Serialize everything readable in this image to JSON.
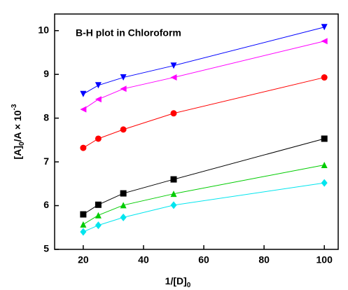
{
  "chart_data": {
    "type": "line",
    "annotation": "B-H plot in Chloroform",
    "x_label": [
      "1/[D]",
      "0"
    ],
    "y_label": [
      "[A]",
      "0",
      "/A × 10",
      "-3"
    ],
    "x": [
      20,
      25,
      33.3,
      50,
      100
    ],
    "series": [
      {
        "color": "#0000ff",
        "marker": "down",
        "values": [
          8.55,
          8.75,
          8.93,
          9.2,
          10.08
        ]
      },
      {
        "color": "#ff00ff",
        "marker": "left",
        "values": [
          8.2,
          8.43,
          8.67,
          8.93,
          9.76
        ]
      },
      {
        "color": "#ff0000",
        "marker": "circle",
        "values": [
          7.32,
          7.53,
          7.74,
          8.11,
          8.93
        ]
      },
      {
        "color": "#000000",
        "marker": "square",
        "values": [
          5.8,
          6.02,
          6.28,
          6.6,
          7.53
        ]
      },
      {
        "color": "#00cc00",
        "marker": "up",
        "values": [
          5.57,
          5.78,
          6.01,
          6.27,
          6.93
        ]
      },
      {
        "color": "#00e5ee",
        "marker": "diamond",
        "values": [
          5.4,
          5.55,
          5.73,
          6.01,
          6.52
        ]
      }
    ],
    "xlim": [
      10.5,
      104.6
    ],
    "ylim": [
      5,
      10.38
    ],
    "xticks": [
      20,
      40,
      60,
      80,
      100
    ],
    "yticks": [
      5,
      6,
      7,
      8,
      9,
      10
    ]
  }
}
